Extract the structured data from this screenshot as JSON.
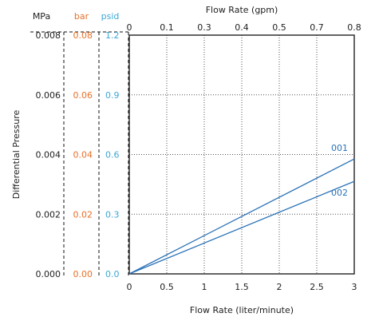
{
  "chart_data": {
    "type": "line",
    "title": "",
    "x_bottom": {
      "label": "Flow Rate (liter/minute)",
      "ticks": [
        "0",
        "0.5",
        "1",
        "1.5",
        "2",
        "2.5",
        "3"
      ],
      "range": [
        0,
        3
      ]
    },
    "x_top": {
      "label": "Flow Rate (gpm)",
      "ticks": [
        "0",
        "0.1",
        "0.3",
        "0.4",
        "0.5",
        "0.7",
        "0.8"
      ]
    },
    "y_label": "Differential Pressure",
    "y_axes": [
      {
        "unit": "MPa",
        "ticks": [
          "0.000",
          "0.002",
          "0.004",
          "0.006",
          "0.008"
        ],
        "color": "#222222"
      },
      {
        "unit": "bar",
        "ticks": [
          "0.00",
          "0.02",
          "0.04",
          "0.06",
          "0.08"
        ],
        "color": "#e8702a"
      },
      {
        "unit": "psid",
        "ticks": [
          "0.0",
          "0.3",
          "0.6",
          "0.9",
          "1.2"
        ],
        "color": "#3aa8d8"
      }
    ],
    "y_range_mpa": [
      0,
      0.008
    ],
    "grid": true,
    "series": [
      {
        "name": "001",
        "color": "#2a72b8",
        "x": [
          0,
          3
        ],
        "y": [
          0,
          0.00385
        ]
      },
      {
        "name": "002",
        "color": "#2a72b8",
        "x": [
          0,
          3
        ],
        "y": [
          0,
          0.0031
        ]
      }
    ]
  }
}
